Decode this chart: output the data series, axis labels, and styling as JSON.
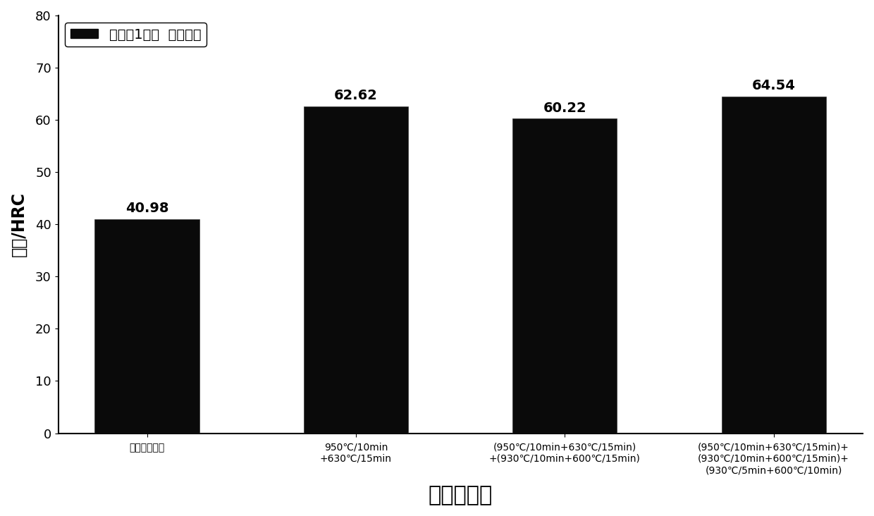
{
  "categories": [
    "未处理的样品",
    "950℃/10min\n+630℃/15min",
    "(950℃/10min+630℃/15min)\n+(930℃/10min+600℃/15min)",
    "(950℃/10min+630℃/15min)+\n(930℃/10min+600℃/15min)+\n(930℃/5min+600℃/10min)"
  ],
  "values": [
    40.98,
    62.62,
    60.22,
    64.54
  ],
  "bar_color": "#0a0a0a",
  "bar_width": 0.5,
  "xlabel": "热处理样品",
  "ylabel": "硬度/HRC",
  "ylim": [
    0,
    80
  ],
  "yticks": [
    0,
    10,
    20,
    30,
    40,
    50,
    60,
    70,
    80
  ],
  "legend_label": "实施例1样品  平均硬度",
  "legend_color": "#0a0a0a",
  "value_fontsize": 14,
  "xlabel_fontsize": 22,
  "ylabel_fontsize": 17,
  "ytick_fontsize": 13,
  "xtick_fontsize": 10,
  "legend_fontsize": 14,
  "background_color": "#ffffff",
  "figure_bg": "#ffffff"
}
